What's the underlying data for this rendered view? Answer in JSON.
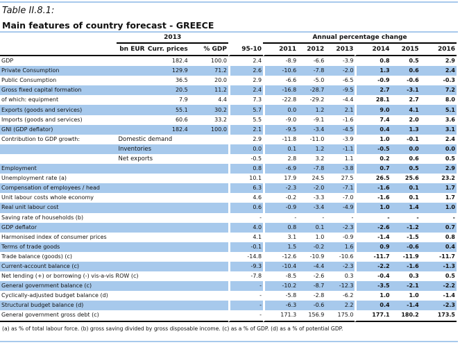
{
  "table_label": "Table II.8.1:",
  "title": "Main features of country forecast - GREECE",
  "header": {
    "group_left": "2013",
    "group_right": "Annual percentage change",
    "columns": [
      "bn EUR",
      "Curr. prices",
      "% GDP",
      "95-10",
      "2011",
      "2012",
      "2013",
      "2014",
      "2015",
      "2016"
    ]
  },
  "rows": [
    {
      "label": "GDP",
      "sub": "",
      "cp": "182.4",
      "pg": "100.0",
      "v": [
        "2.4",
        "-8.9",
        "-6.6",
        "-3.9",
        "0.8",
        "0.5",
        "2.9"
      ],
      "blue": false
    },
    {
      "label": "Private Consumption",
      "sub": "",
      "cp": "129.9",
      "pg": "71.2",
      "v": [
        "2.6",
        "-10.6",
        "-7.8",
        "-2.0",
        "1.3",
        "0.6",
        "2.4"
      ],
      "blue": true
    },
    {
      "label": "Public Consumption",
      "sub": "",
      "cp": "36.5",
      "pg": "20.0",
      "v": [
        "2.9",
        "-6.6",
        "-5.0",
        "-6.5",
        "-0.9",
        "-0.6",
        "-0.3"
      ],
      "blue": false
    },
    {
      "label": "Gross fixed capital formation",
      "sub": "",
      "cp": "20.5",
      "pg": "11.2",
      "v": [
        "2.4",
        "-16.8",
        "-28.7",
        "-9.5",
        "2.7",
        "-3.1",
        "7.2"
      ],
      "blue": true
    },
    {
      "label": "of which: equipment",
      "sub": "",
      "cp": "7.9",
      "pg": "4.4",
      "v": [
        "7.3",
        "-22.8",
        "-29.2",
        "-4.4",
        "28.1",
        "2.7",
        "8.0"
      ],
      "blue": false
    },
    {
      "label": "Exports (goods and services)",
      "sub": "",
      "cp": "55.1",
      "pg": "30.2",
      "v": [
        "5.7",
        "0.0",
        "1.2",
        "2.1",
        "9.0",
        "4.1",
        "5.1"
      ],
      "blue": true
    },
    {
      "label": "Imports (goods and services)",
      "sub": "",
      "cp": "60.6",
      "pg": "33.2",
      "v": [
        "5.5",
        "-9.0",
        "-9.1",
        "-1.6",
        "7.4",
        "2.0",
        "3.6"
      ],
      "blue": false
    },
    {
      "label": "GNI (GDP deflator)",
      "sub": "",
      "cp": "182.4",
      "pg": "100.0",
      "v": [
        "2.1",
        "-9.5",
        "-3.4",
        "-4.5",
        "0.4",
        "1.3",
        "3.1"
      ],
      "blue": true
    },
    {
      "label": "Contribution to GDP growth:",
      "sub": "Domestic demand",
      "cp": "",
      "pg": "",
      "v": [
        "2.9",
        "-11.8",
        "-11.0",
        "-3.9",
        "1.0",
        "-0.1",
        "2.4"
      ],
      "blue": false
    },
    {
      "label": "",
      "sub": "Inventories",
      "cp": "",
      "pg": "",
      "v": [
        "0.0",
        "0.1",
        "1.2",
        "-1.1",
        "-0.5",
        "0.0",
        "0.0"
      ],
      "blue": true
    },
    {
      "label": "",
      "sub": "Net exports",
      "cp": "",
      "pg": "",
      "v": [
        "-0.5",
        "2.8",
        "3.2",
        "1.1",
        "0.2",
        "0.6",
        "0.5"
      ],
      "blue": false
    },
    {
      "label": "Employment",
      "sub": "",
      "cp": "",
      "pg": "",
      "v": [
        "0.8",
        "-6.9",
        "-7.8",
        "-3.8",
        "0.7",
        "0.5",
        "2.9"
      ],
      "blue": true
    },
    {
      "label": "Unemployment rate (a)",
      "sub": "",
      "cp": "",
      "pg": "",
      "v": [
        "10.1",
        "17.9",
        "24.5",
        "27.5",
        "26.5",
        "25.6",
        "23.2"
      ],
      "blue": false
    },
    {
      "label": "Compensation of employees / head",
      "sub": "",
      "cp": "",
      "pg": "",
      "v": [
        "6.3",
        "-2.3",
        "-2.0",
        "-7.1",
        "-1.6",
        "0.1",
        "1.7"
      ],
      "blue": true
    },
    {
      "label": "Unit labour costs whole economy",
      "sub": "",
      "cp": "",
      "pg": "",
      "v": [
        "4.6",
        "-0.2",
        "-3.3",
        "-7.0",
        "-1.6",
        "0.1",
        "1.7"
      ],
      "blue": false
    },
    {
      "label": "Real unit labour cost",
      "sub": "",
      "cp": "",
      "pg": "",
      "v": [
        "0.6",
        "-0.9",
        "-3.4",
        "-4.9",
        "1.0",
        "1.4",
        "1.0"
      ],
      "blue": true
    },
    {
      "label": "Saving rate of households (b)",
      "sub": "",
      "cp": "",
      "pg": "",
      "v": [
        "-",
        "-",
        "-",
        "-",
        "-",
        "-",
        "-"
      ],
      "blue": false
    },
    {
      "label": "GDP deflator",
      "sub": "",
      "cp": "",
      "pg": "",
      "v": [
        "4.0",
        "0.8",
        "0.1",
        "-2.3",
        "-2.6",
        "-1.2",
        "0.7"
      ],
      "blue": true
    },
    {
      "label": "Harmonised index of consumer prices",
      "sub": "",
      "cp": "",
      "pg": "",
      "v": [
        "4.1",
        "3.1",
        "1.0",
        "-0.9",
        "-1.4",
        "-1.5",
        "0.8"
      ],
      "blue": false
    },
    {
      "label": "Terms of trade goods",
      "sub": "",
      "cp": "",
      "pg": "",
      "v": [
        "-0.1",
        "1.5",
        "-0.2",
        "1.6",
        "0.9",
        "-0.6",
        "0.4"
      ],
      "blue": true
    },
    {
      "label": "Trade balance (goods) (c)",
      "sub": "",
      "cp": "",
      "pg": "",
      "v": [
        "-14.8",
        "-12.6",
        "-10.9",
        "-10.6",
        "-11.7",
        "-11.9",
        "-11.7"
      ],
      "blue": false
    },
    {
      "label": "Current-account balance (c)",
      "sub": "",
      "cp": "",
      "pg": "",
      "v": [
        "-9.3",
        "-10.4",
        "-4.4",
        "-2.3",
        "-2.2",
        "-1.6",
        "-1.3"
      ],
      "blue": true
    },
    {
      "label": "Net lending (+) or borrowing (-) vis-a-vis ROW (c)",
      "sub": "",
      "cp": "",
      "pg": "",
      "v": [
        "-7.8",
        "-8.5",
        "-2.6",
        "0.3",
        "-0.4",
        "0.3",
        "0.5"
      ],
      "blue": false
    },
    {
      "label": "General government balance (c)",
      "sub": "",
      "cp": "",
      "pg": "",
      "v": [
        "-",
        "-10.2",
        "-8.7",
        "-12.3",
        "-3.5",
        "-2.1",
        "-2.2"
      ],
      "blue": true
    },
    {
      "label": "Cyclically-adjusted budget balance (d)",
      "sub": "",
      "cp": "",
      "pg": "",
      "v": [
        "-",
        "-5.8",
        "-2.8",
        "-6.2",
        "1.0",
        "1.0",
        "-1.4"
      ],
      "blue": false
    },
    {
      "label": "Structural budget balance (d)",
      "sub": "",
      "cp": "",
      "pg": "",
      "v": [
        "-",
        "-6.3",
        "-0.6",
        "2.2",
        "0.4",
        "-1.4",
        "-2.3"
      ],
      "blue": true
    },
    {
      "label": "General government gross debt (c)",
      "sub": "",
      "cp": "",
      "pg": "",
      "v": [
        "-",
        "171.3",
        "156.9",
        "175.0",
        "177.1",
        "180.2",
        "173.5"
      ],
      "blue": false
    }
  ],
  "footnote": "(a) as % of total labour force. (b) gross saving divided by gross disposable income.  (c) as a % of  GDP. (d) as a % of  potential GDP.",
  "colors": {
    "highlight": "#a7c9ec",
    "rule": "#000000"
  }
}
